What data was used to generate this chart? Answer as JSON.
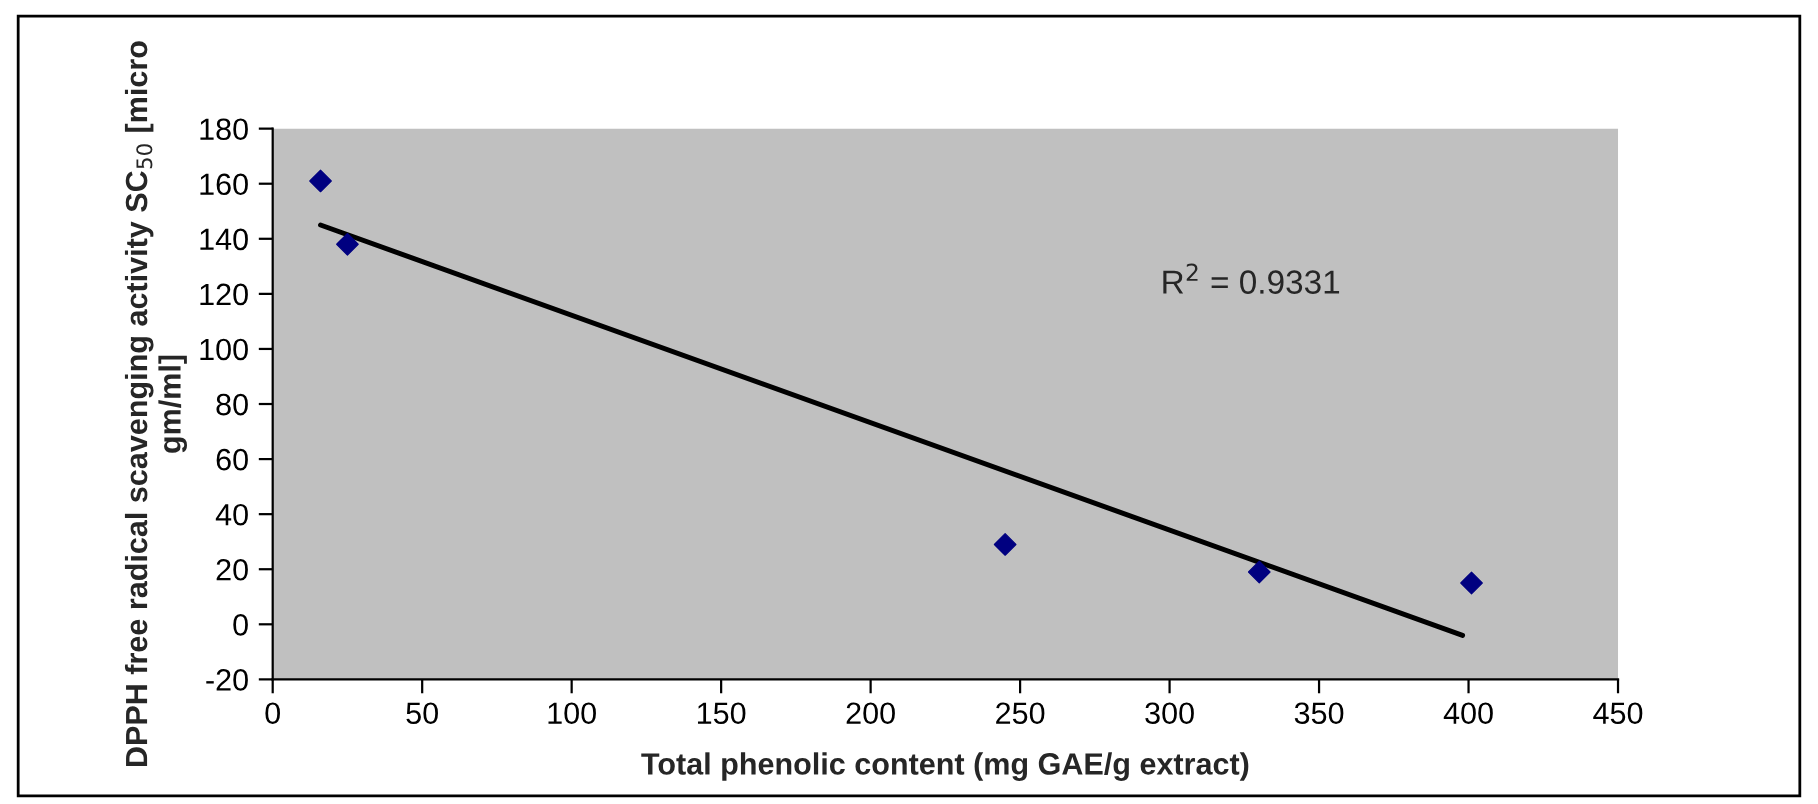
{
  "chart_data": {
    "type": "scatter",
    "xlabel": "Total phenolic content (mg GAE/g extract)",
    "ylabel": "DPPH free radical scavenging activity SC$_{50}$ [micro gm/ml]",
    "series": [
      {
        "color": "#000080",
        "x": [
          16,
          25,
          245,
          330,
          401
        ],
        "values": [
          161,
          138,
          29,
          19,
          15
        ],
        "marker": "diamond"
      },
      {
        "type": "line",
        "color": "#000000",
        "x": [
          16,
          398
        ],
        "values": [
          145,
          -4
        ],
        "line_style": "solid",
        "marker": "none"
      }
    ],
    "annotations": [
      "R$^{2}$ = 0.9331"
    ],
    "xlim": [
      0,
      450
    ],
    "xticks": [
      0,
      50,
      100,
      150,
      200,
      250,
      300,
      350,
      400,
      450
    ],
    "ylim": [
      -20,
      180
    ],
    "yticks": [
      -20,
      0,
      20,
      40,
      60,
      80,
      100,
      120,
      140,
      160,
      180
    ],
    "grid": false,
    "legend": false
  }
}
